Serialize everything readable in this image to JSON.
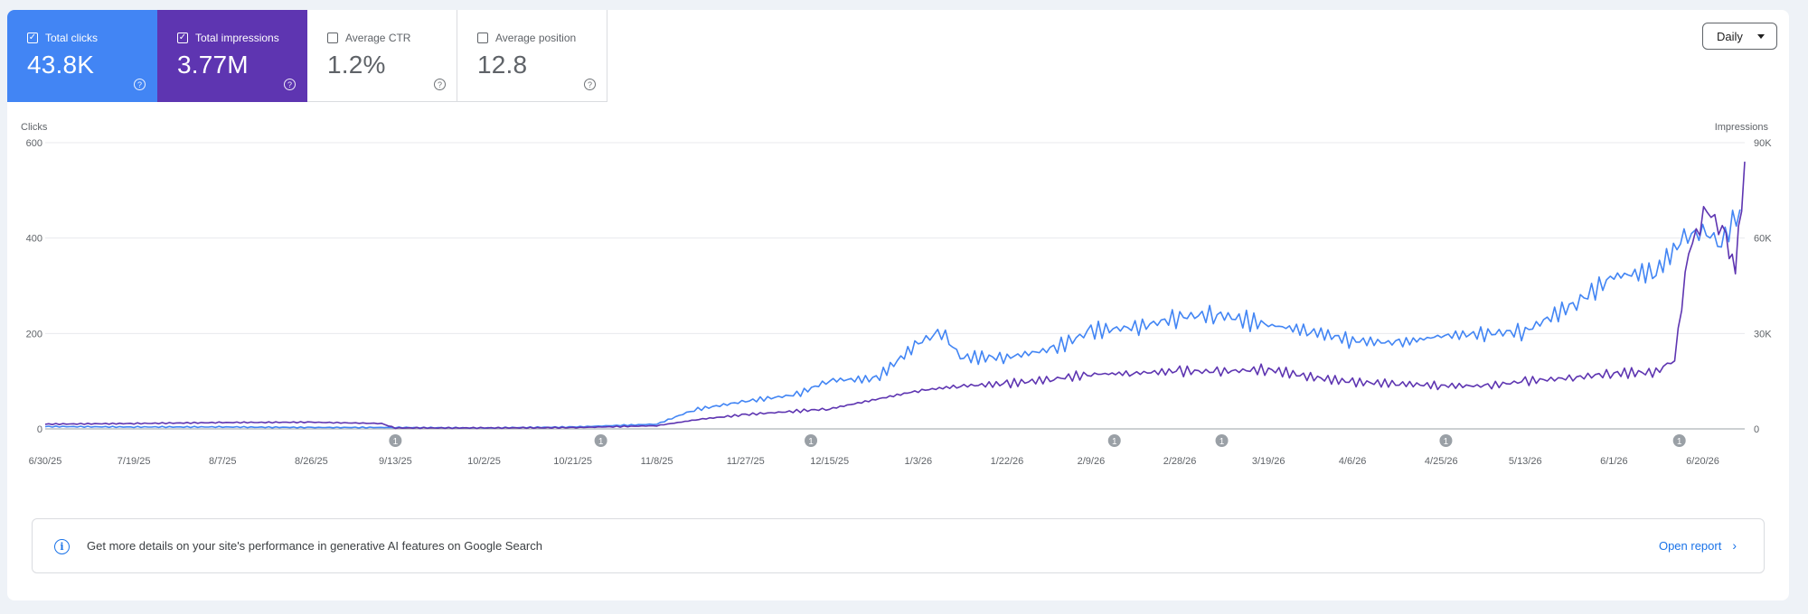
{
  "metrics": [
    {
      "label": "Total clicks",
      "value": "43.8K",
      "checked": true
    },
    {
      "label": "Total impressions",
      "value": "3.77M",
      "checked": true
    },
    {
      "label": "Average CTR",
      "value": "1.2%",
      "checked": false
    },
    {
      "label": "Average position",
      "value": "12.8",
      "checked": false
    }
  ],
  "period_select": {
    "value": "Daily"
  },
  "banner": {
    "message": "Get more details on your site's performance in generative AI features on Google Search",
    "link": "Open report"
  },
  "colors": {
    "clicks": "#4285f4",
    "impressions": "#5e35b1",
    "annotation": "#9aa0a6"
  },
  "icons": {
    "help": "question-circle-icon",
    "info": "info-icon",
    "dropdown": "caret-down-icon",
    "link": "chevron-right-icon"
  },
  "chart_data": {
    "type": "line",
    "ylabel_left": "Clicks",
    "ylabel_right": "Impressions",
    "left_ticks": [
      "0",
      "200",
      "400",
      "600"
    ],
    "right_ticks": [
      "0",
      "30K",
      "60K",
      "90K"
    ],
    "ylim_left": [
      0,
      600
    ],
    "ylim_right": [
      0,
      90000
    ],
    "x_ticks": [
      "6/30/25",
      "7/19/25",
      "8/7/25",
      "8/26/25",
      "9/13/25",
      "10/2/25",
      "10/21/25",
      "11/8/25",
      "11/27/25",
      "12/15/25",
      "1/3/26",
      "1/22/26",
      "2/9/26",
      "2/28/26",
      "3/19/26",
      "4/6/26",
      "4/25/26",
      "5/13/26",
      "6/1/26",
      "6/20/26"
    ],
    "annotations": [
      {
        "date": "9/13/25",
        "label": "1"
      },
      {
        "date": "10/27/25",
        "label": "1"
      },
      {
        "date": "12/11/25",
        "label": "1"
      },
      {
        "date": "2/14/26",
        "label": "1"
      },
      {
        "date": "3/9/26",
        "label": "1"
      },
      {
        "date": "4/26/26",
        "label": "1"
      },
      {
        "date": "6/15/26",
        "label": "1"
      }
    ],
    "grid": true,
    "legend": "none",
    "series": [
      {
        "axis": "left",
        "color": "#4285f4",
        "points": [
          [
            "6/30/25",
            5
          ],
          [
            "7/19/25",
            4
          ],
          [
            "8/7/25",
            4
          ],
          [
            "8/26/25",
            3
          ],
          [
            "9/13/25",
            3
          ],
          [
            "10/2/25",
            2
          ],
          [
            "10/21/25",
            4
          ],
          [
            "11/8/25",
            10
          ],
          [
            "11/16/25",
            40
          ],
          [
            "11/27/25",
            58
          ],
          [
            "12/8/25",
            72
          ],
          [
            "12/15/25",
            102
          ],
          [
            "12/25/25",
            105
          ],
          [
            "1/3/26",
            180
          ],
          [
            "1/8/26",
            205
          ],
          [
            "1/12/26",
            150
          ],
          [
            "1/22/26",
            150
          ],
          [
            "2/1/26",
            168
          ],
          [
            "2/9/26",
            205
          ],
          [
            "2/20/26",
            215
          ],
          [
            "2/28/26",
            235
          ],
          [
            "3/8/26",
            240
          ],
          [
            "3/19/26",
            218
          ],
          [
            "3/28/26",
            205
          ],
          [
            "4/6/26",
            185
          ],
          [
            "4/16/26",
            180
          ],
          [
            "4/25/26",
            195
          ],
          [
            "5/5/26",
            200
          ],
          [
            "5/13/26",
            205
          ],
          [
            "5/24/26",
            265
          ],
          [
            "6/1/26",
            320
          ],
          [
            "6/10/26",
            330
          ],
          [
            "6/16/26",
            400
          ],
          [
            "6/20/26",
            415
          ],
          [
            "6/24/26",
            390
          ],
          [
            "6/28/26",
            460
          ]
        ]
      },
      {
        "axis": "right",
        "color": "#5e35b1",
        "points": [
          [
            "6/30/25",
            1500
          ],
          [
            "7/19/25",
            1700
          ],
          [
            "8/7/25",
            2000
          ],
          [
            "8/26/25",
            2100
          ],
          [
            "9/10/25",
            1700
          ],
          [
            "9/13/25",
            300
          ],
          [
            "10/2/25",
            300
          ],
          [
            "10/21/25",
            400
          ],
          [
            "11/8/25",
            1000
          ],
          [
            "11/17/25",
            3000
          ],
          [
            "11/27/25",
            4500
          ],
          [
            "12/15/25",
            6300
          ],
          [
            "1/3/26",
            12000
          ],
          [
            "1/12/26",
            13500
          ],
          [
            "1/22/26",
            14200
          ],
          [
            "2/1/26",
            15700
          ],
          [
            "2/9/26",
            17200
          ],
          [
            "2/18/26",
            17500
          ],
          [
            "2/28/26",
            18200
          ],
          [
            "3/8/26",
            18000
          ],
          [
            "3/19/26",
            18700
          ],
          [
            "3/28/26",
            16300
          ],
          [
            "4/6/26",
            14700
          ],
          [
            "4/16/26",
            14200
          ],
          [
            "4/25/26",
            13600
          ],
          [
            "5/5/26",
            13500
          ],
          [
            "5/13/26",
            15000
          ],
          [
            "5/24/26",
            16200
          ],
          [
            "6/1/26",
            17500
          ],
          [
            "6/10/26",
            17800
          ],
          [
            "6/14/26",
            22000
          ],
          [
            "6/17/26",
            56000
          ],
          [
            "6/21/26",
            69000
          ],
          [
            "6/25/26",
            60000
          ],
          [
            "6/27/26",
            50000
          ],
          [
            "6/29/26",
            84000
          ]
        ]
      }
    ]
  }
}
